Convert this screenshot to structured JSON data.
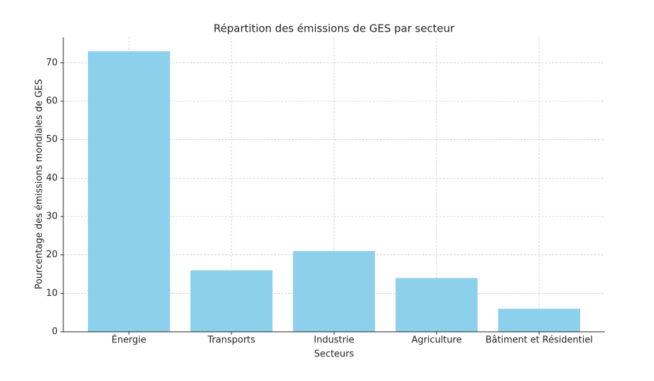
{
  "chart_data": {
    "type": "bar",
    "title": "Répartition des émissions de GES par secteur",
    "x_label": "Secteurs",
    "y_label": "Pourcentage des émissions mondiales de GES",
    "categories": [
      "Énergie",
      "Transports",
      "Industrie",
      "Agriculture",
      "Bâtiment et Résidentiel"
    ],
    "values": [
      73,
      16,
      21,
      14,
      6
    ],
    "color": "#87ceeb",
    "ylim": [
      0,
      76.65
    ],
    "yticks": [
      0,
      10,
      20,
      30,
      40,
      50,
      60,
      70
    ],
    "grid": true
  }
}
